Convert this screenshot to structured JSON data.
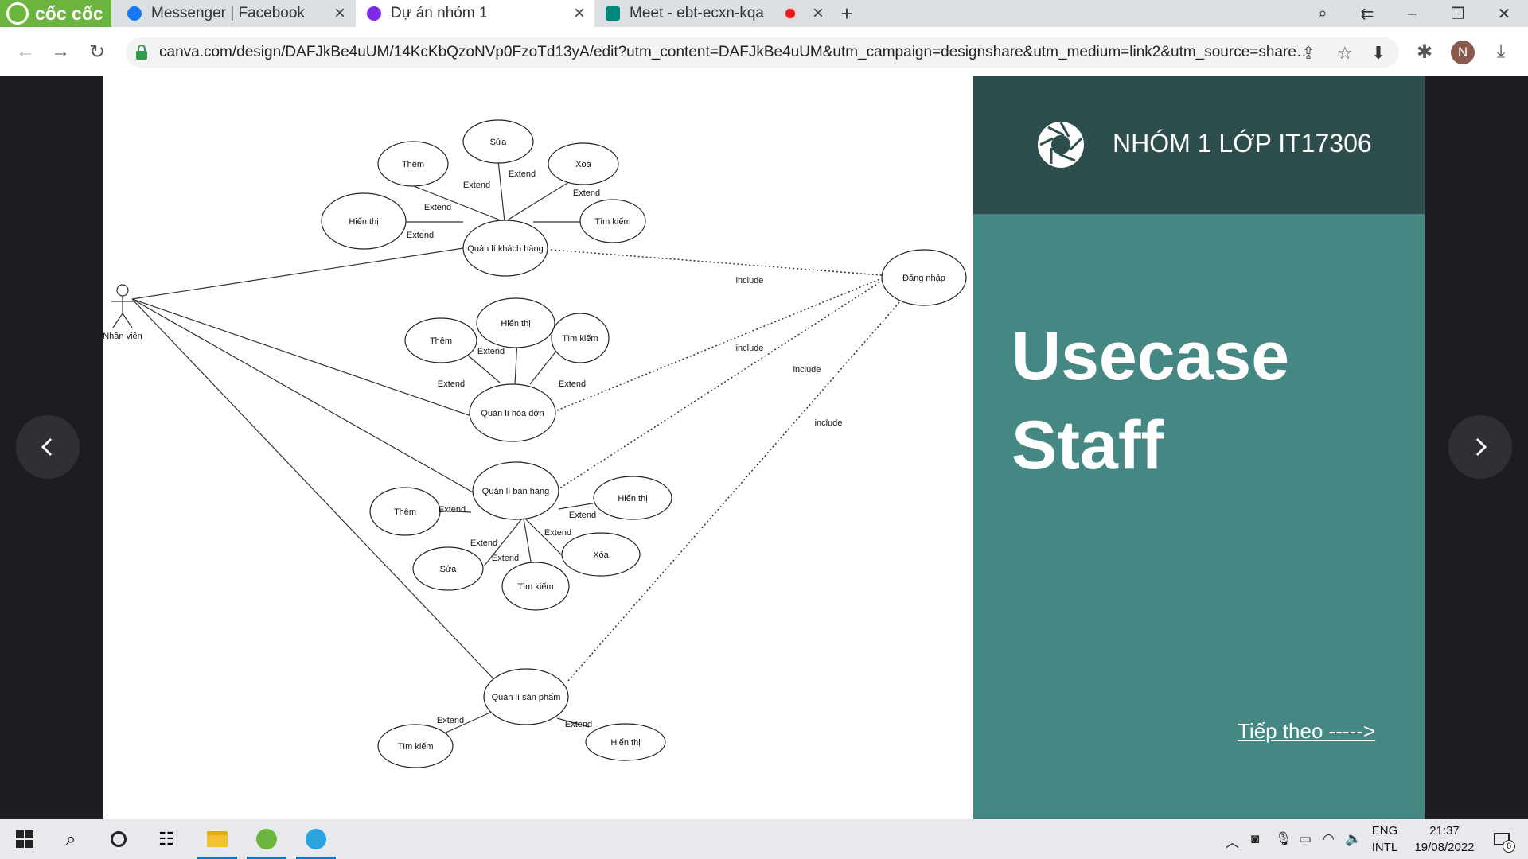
{
  "browser": {
    "brand": "cốc cốc",
    "tabs": [
      {
        "title": "Messenger | Facebook",
        "icon": "facebook-icon",
        "color": "#1877f2"
      },
      {
        "title": "Dự án nhóm 1",
        "icon": "canva-icon",
        "color": "#00c4cc"
      },
      {
        "title": "Meet - ebt-ecxn-kqa",
        "icon": "google-meet-icon",
        "color": "#00897b"
      }
    ],
    "url": "canva.com/design/DAFJkBe4uUM/14KcKbQzoNVp0FzoTd13yA/edit?utm_content=DAFJkBe4uUM&utm_campaign=designshare&utm_medium=link2&utm_source=sharebutton&fbcli...",
    "profile_initial": "N"
  },
  "diagram": {
    "actor": "Nhân viên",
    "login": "Đăng nhập",
    "relations": {
      "extend": "Extend",
      "include": "include"
    },
    "use_cases": {
      "customer": {
        "main": "Quản lí khách hàng",
        "them": "Thêm",
        "sua": "Sửa",
        "xoa": "Xóa",
        "hien_thi": "Hiển thị",
        "tim_kiem": "Tìm kiếm"
      },
      "invoice": {
        "main": "Quản lí hóa đơn",
        "them": "Thêm",
        "hien_thi": "Hiển thị",
        "tim_kiem": "Tìm kiếm"
      },
      "sales": {
        "main": "Quản lí bán hàng",
        "them": "Thêm",
        "hien_thi": "Hiển thị",
        "xoa": "Xóa",
        "sua": "Sửa",
        "tim_kiem": "Tìm kiếm"
      },
      "product": {
        "main": "Quản lí sản phẩm",
        "tim_kiem": "Tìm kiếm",
        "hien_thi": "Hiển thị"
      }
    }
  },
  "side_panel": {
    "group": "NHÓM 1 LỚP IT17306",
    "title_line1": "Usecase",
    "title_line2": "Staff",
    "next": "Tiếp theo ----->"
  },
  "taskbar": {
    "lang_top": "ENG",
    "lang_bottom": "INTL",
    "time": "21:37",
    "date": "19/08/2022",
    "notification_count": "6"
  },
  "colors": {
    "panel_dark": "#2d4e4d",
    "panel": "#458782",
    "brand_green": "#6bb53f"
  }
}
